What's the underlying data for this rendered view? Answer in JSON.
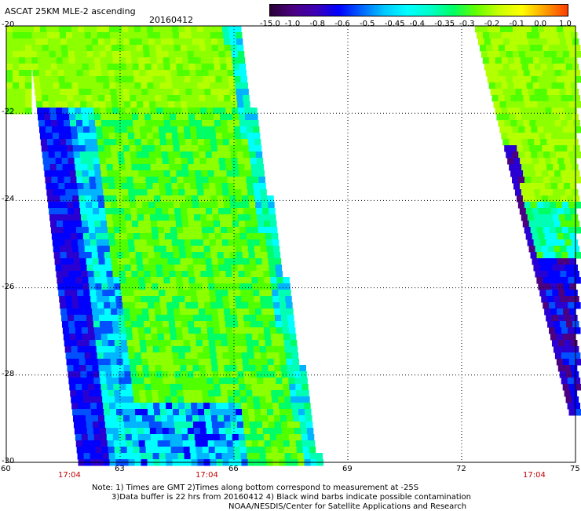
{
  "header": {
    "title": "ASCAT 25KM MLE-2 ascending",
    "date": "20160412"
  },
  "colorbar": {
    "labels": [
      "-15.0",
      "-1.0",
      "-0.8",
      "-0.6",
      "-0.5",
      "-0.45",
      "-0.4",
      "-0.35",
      "-0.3",
      "-0.2",
      "-0.1",
      "0.0",
      "1.0"
    ],
    "colors": [
      "#2a0036",
      "#4b0082",
      "#3c00b4",
      "#0000ff",
      "#0064ff",
      "#00c8ff",
      "#00ffff",
      "#00ffc8",
      "#00ff64",
      "#64ff00",
      "#c8ff00",
      "#ffff00",
      "#ffa000",
      "#ff3c00"
    ]
  },
  "axes": {
    "y_ticks": [
      "-20",
      "-22",
      "-24",
      "-26",
      "-28",
      "-30"
    ],
    "x_ticks": [
      "60",
      "63",
      "66",
      "69",
      "72",
      "75"
    ]
  },
  "times": [
    "17:04",
    "17:04",
    "17:04"
  ],
  "notes": {
    "line1": "Note: 1) Times are GMT 2)Times along bottom correspond to measurement at -25S",
    "line2": "3)Data buffer is 22 hrs from 20160412 4) Black wind barbs indicate possible contamination",
    "line3": "NOAA/NESDIS/Center for Satellite Applications and Research"
  },
  "swaths": {
    "left_swath_mean_level": "-0.35",
    "right_swath_mean_level": "-0.3"
  }
}
